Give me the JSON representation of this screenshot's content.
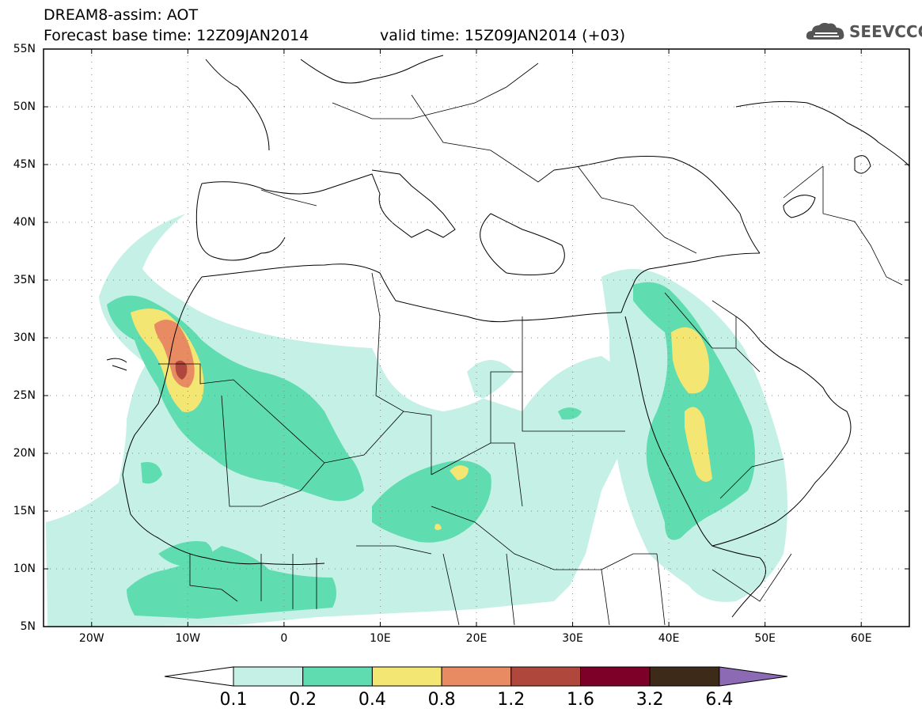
{
  "header": {
    "title": "DREAM8-assim: AOT",
    "base_time": "Forecast base time: 12Z09JAN2014",
    "valid_time": "valid time: 15Z09JAN2014 (+03)"
  },
  "logo": {
    "text": "SEEVCCC",
    "icon": "cloud-icon"
  },
  "map": {
    "lon_range": [
      -25,
      65
    ],
    "lat_range": [
      5,
      55
    ],
    "lat_labels": [
      "55N",
      "50N",
      "45N",
      "40N",
      "35N",
      "30N",
      "25N",
      "20N",
      "15N",
      "10N",
      "5N"
    ],
    "lon_labels": [
      "20W",
      "10W",
      "0",
      "10E",
      "20E",
      "30E",
      "40E",
      "50E",
      "60E"
    ],
    "grid": "dotted"
  },
  "colorbar": {
    "labels": [
      "0.1",
      "0.2",
      "0.4",
      "0.8",
      "1.2",
      "1.6",
      "3.2",
      "6.4"
    ],
    "colors": [
      "#ffffff",
      "#c4f0e6",
      "#5fdcb0",
      "#f3e673",
      "#e88b62",
      "#b0473c",
      "#7d0028",
      "#3d2a18",
      "#8c6bb4"
    ]
  }
}
